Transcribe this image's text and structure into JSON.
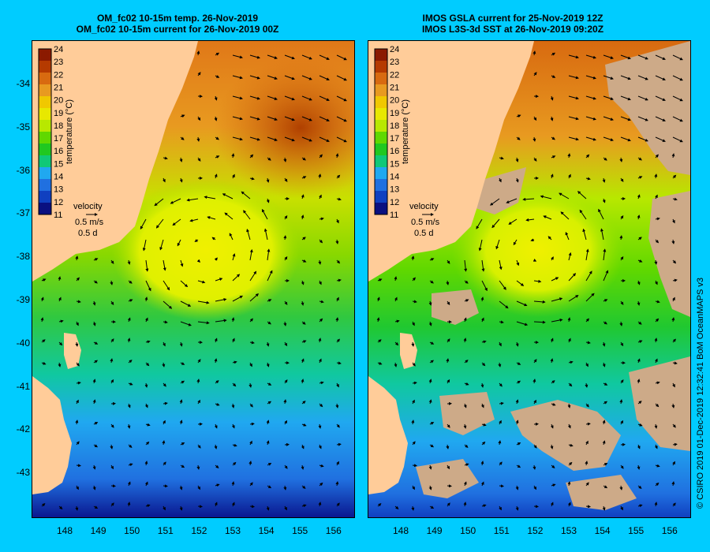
{
  "panels": [
    {
      "title_line1": "OM_fc02 10-15m temp. 26-Nov-2019",
      "title_line2": "OM_fc02 10-15m current for 26-Nov-2019 00Z"
    },
    {
      "title_line1": "IMOS GSLA current for 25-Nov-2019 12Z",
      "title_line2": "IMOS L3S-3d SST at 26-Nov-2019 09:20Z"
    }
  ],
  "colorbar": {
    "values": [
      "24",
      "23",
      "22",
      "21",
      "20",
      "19",
      "18",
      "17",
      "16",
      "15",
      "14",
      "13",
      "12",
      "11"
    ],
    "label": "temperature (°C)",
    "colors": [
      "#8b1a00",
      "#b53a00",
      "#d86a10",
      "#e89a20",
      "#f0c800",
      "#e8e800",
      "#b8e800",
      "#60d800",
      "#20c820",
      "#10c878",
      "#20a8f0",
      "#2070e0",
      "#1040c0",
      "#0a1080"
    ]
  },
  "velocity_legend": {
    "title": "velocity",
    "speed": "0.5 m/s",
    "duration": "0.5 d"
  },
  "lat_labels": [
    "-34",
    "-35",
    "-36",
    "-37",
    "-38",
    "-39",
    "-40",
    "-41",
    "-42",
    "-43"
  ],
  "lon_labels": [
    "148",
    "149",
    "150",
    "151",
    "152",
    "153",
    "154",
    "155",
    "156"
  ],
  "copyright": "© CSIRO 2019   01-Dec-2019 12:32:41 BoM OceanMAPS v3",
  "colors": {
    "land": "#ffcc99",
    "land_cloud": "#cdaa88",
    "frame_bg": "#00ccff"
  }
}
